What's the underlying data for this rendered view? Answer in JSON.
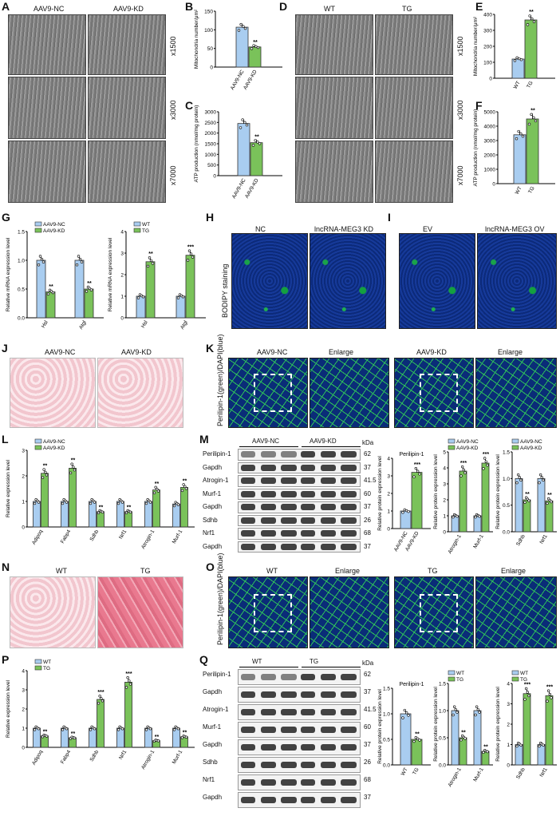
{
  "panels": {
    "A": {
      "letter": "A",
      "cols": [
        "AAV9-NC",
        "AAV9-KD"
      ],
      "mags": [
        "x1500",
        "x3000",
        "x7000"
      ]
    },
    "B": {
      "letter": "B",
      "ylabel": "Mitochondria number/μm²",
      "cats": [
        "AAV9-NC",
        "AAV9-KD"
      ],
      "values": [
        107,
        54
      ],
      "yticks": [
        "0",
        "50",
        "100",
        "150"
      ],
      "sig": "**"
    },
    "C": {
      "letter": "C",
      "ylabel": "ATP production (nmol/mg protein)",
      "cats": [
        "AAV9-NC",
        "AAV9-KD"
      ],
      "values": [
        2450,
        1550
      ],
      "yticks": [
        "0",
        "500",
        "1000",
        "1500",
        "2000",
        "2500",
        "3000"
      ],
      "sig": "**"
    },
    "D": {
      "letter": "D",
      "cols": [
        "WT",
        "TG"
      ],
      "mags": [
        "x1500",
        "x3000",
        "x7000"
      ]
    },
    "E": {
      "letter": "E",
      "ylabel": "Mitochondria number/μm²",
      "cats": [
        "WT",
        "TG"
      ],
      "values": [
        120,
        365
      ],
      "yticks": [
        "0",
        "100",
        "200",
        "300",
        "400"
      ],
      "sig": "**"
    },
    "F": {
      "letter": "F",
      "ylabel": "ATP production (nmol/mg protein)",
      "cats": [
        "WT",
        "TG"
      ],
      "values": [
        3400,
        4500
      ],
      "yticks": [
        "0",
        "1000",
        "2000",
        "3000",
        "4000",
        "5000"
      ],
      "sig": "**"
    },
    "G": {
      "letter": "G",
      "ylabel": "Relative mRNA expression level",
      "left": {
        "legend": [
          "AAV9-NC",
          "AAV9-KD"
        ],
        "cats": [
          "Hsl",
          "Atgl"
        ],
        "a": [
          1.0,
          1.0
        ],
        "b": [
          0.45,
          0.5
        ],
        "sig": [
          "**",
          "**"
        ],
        "yticks": [
          "0.0",
          "0.5",
          "1.0",
          "1.5"
        ]
      },
      "right": {
        "legend": [
          "WT",
          "TG"
        ],
        "cats": [
          "Hsl",
          "Atgl"
        ],
        "a": [
          1.0,
          1.0
        ],
        "b": [
          2.6,
          2.9
        ],
        "sig": [
          "**",
          "***"
        ],
        "yticks": [
          "0",
          "1",
          "2",
          "3",
          "4"
        ]
      }
    },
    "H": {
      "letter": "H",
      "cols": [
        "NC",
        "lncRNA-MEG3 KD"
      ],
      "side": "BODIPY staining"
    },
    "I": {
      "letter": "I",
      "cols": [
        "EV",
        "lncRNA-MEG3 OV"
      ]
    },
    "J": {
      "letter": "J",
      "cols": [
        "AAV9-NC",
        "AAV9-KD"
      ]
    },
    "K": {
      "letter": "K",
      "cols": [
        "AAV9-NC",
        "Enlarge",
        "AAV9-KD",
        "Enlarge"
      ],
      "side": "Perilipin-1(green)/DAPI(blue)"
    },
    "L": {
      "letter": "L",
      "ylabel": "Relative expression level",
      "legend": [
        "AAV9-NC",
        "AAV9-KD"
      ],
      "cats": [
        "Adipoq",
        "Fabp4",
        "Sdhb",
        "Nrf1",
        "Atrogin-1",
        "Murf-1"
      ],
      "a": [
        1.0,
        1.0,
        1.0,
        1.0,
        1.0,
        0.9
      ],
      "b": [
        2.1,
        2.3,
        0.6,
        0.6,
        1.45,
        1.55
      ],
      "sig": [
        "**",
        "**",
        "**",
        "**",
        "**",
        "**"
      ],
      "yticks": [
        "0",
        "1",
        "2",
        "3"
      ]
    },
    "M": {
      "letter": "M",
      "groups": [
        "AAV9-NC",
        "AAV9-KD"
      ],
      "kda": "kDa",
      "bands": [
        {
          "name": "Perilipin-1",
          "kda": "62"
        },
        {
          "name": "Gapdh",
          "kda": "37"
        },
        {
          "name": "Atrogin-1",
          "kda": "41.5"
        },
        {
          "name": "Murf-1",
          "kda": "60"
        },
        {
          "name": "Gapdh",
          "kda": "37"
        },
        {
          "name": "Sdhb",
          "kda": "26"
        },
        {
          "name": "Nrf1",
          "kda": "68"
        },
        {
          "name": "Gapdh",
          "kda": "37"
        }
      ],
      "c1": {
        "title": "Perilipin-1",
        "ylabel": "Relative protein expression level",
        "cats": [
          "AAV9-NC",
          "AAV9-KD"
        ],
        "values": [
          1.0,
          3.2
        ],
        "sig": "***",
        "yticks": [
          "0",
          "1",
          "2",
          "3",
          "4"
        ]
      },
      "c2": {
        "legend": [
          "AAV9-NC",
          "AAV9-KD"
        ],
        "ylabel": "Relative protein expression level",
        "cats": [
          "Atrogin-1",
          "Murf-1"
        ],
        "a": [
          1.0,
          1.0
        ],
        "b": [
          3.8,
          4.3
        ],
        "sig": [
          "***",
          "***"
        ],
        "yticks": [
          "0",
          "1",
          "2",
          "3",
          "4",
          "5"
        ]
      },
      "c3": {
        "legend": [
          "AAV9-NC",
          "AAV9-KD"
        ],
        "ylabel": "Relative protein expression level",
        "cats": [
          "Sdhb",
          "Nrf1"
        ],
        "a": [
          1.0,
          1.0
        ],
        "b": [
          0.6,
          0.58
        ],
        "sig": [
          "**",
          "**"
        ],
        "yticks": [
          "0.0",
          "0.5",
          "1.0",
          "1.5"
        ]
      }
    },
    "N": {
      "letter": "N",
      "cols": [
        "WT",
        "TG"
      ]
    },
    "O": {
      "letter": "O",
      "cols": [
        "WT",
        "Enlarge",
        "TG",
        "Enlarge"
      ],
      "side": "Perilipin-1(green)/DAPI(blue)"
    },
    "P": {
      "letter": "P",
      "ylabel": "Relative expression level",
      "legend": [
        "WT",
        "TG"
      ],
      "cats": [
        "Adipoq",
        "Fabp4",
        "Sdhb",
        "Nrf1",
        "Atrogin-1",
        "Murf-1"
      ],
      "a": [
        1.0,
        1.0,
        1.0,
        1.0,
        1.0,
        1.0
      ],
      "b": [
        0.6,
        0.5,
        2.5,
        3.4,
        0.35,
        0.55
      ],
      "sig": [
        "**",
        "**",
        "***",
        "***",
        "**",
        "**"
      ],
      "yticks": [
        "0",
        "1",
        "2",
        "3",
        "4"
      ]
    },
    "Q": {
      "letter": "Q",
      "groups": [
        "WT",
        "TG"
      ],
      "kda": "kDa",
      "bands": [
        {
          "name": "Perilipin-1",
          "kda": "62"
        },
        {
          "name": "Gapdh",
          "kda": "37"
        },
        {
          "name": "Atrogin-1",
          "kda": "41.5"
        },
        {
          "name": "Murf-1",
          "kda": "60"
        },
        {
          "name": "Gapdh",
          "kda": "37"
        },
        {
          "name": "Sdhb",
          "kda": "26"
        },
        {
          "name": "Nrf1",
          "kda": "68"
        },
        {
          "name": "Gapdh",
          "kda": "37"
        }
      ],
      "c1": {
        "title": "Perilipin-1",
        "ylabel": "Relative protein expression level",
        "cats": [
          "WT",
          "TG"
        ],
        "values": [
          1.0,
          0.5
        ],
        "sig": "**",
        "yticks": [
          "0.0",
          "0.5",
          "1.0",
          "1.5"
        ]
      },
      "c2": {
        "legend": [
          "WT",
          "TG"
        ],
        "ylabel": "Relative protein expression level",
        "cats": [
          "Atrogin-1",
          "Murf-1"
        ],
        "a": [
          1.0,
          1.0
        ],
        "b": [
          0.5,
          0.25
        ],
        "sig": [
          "**",
          "**"
        ],
        "yticks": [
          "0.0",
          "0.5",
          "1.0",
          "1.5"
        ]
      },
      "c3": {
        "legend": [
          "WT",
          "TG"
        ],
        "ylabel": "Relative protein expression level",
        "cats": [
          "Sdhb",
          "Nrf1"
        ],
        "a": [
          1.0,
          1.0
        ],
        "b": [
          3.5,
          3.4
        ],
        "sig": [
          "***",
          "***"
        ],
        "yticks": [
          "0",
          "1",
          "2",
          "3",
          "4"
        ]
      }
    }
  },
  "colors": {
    "blue": "#a9cdf0",
    "green": "#7ac25a",
    "edge": "#333333"
  }
}
